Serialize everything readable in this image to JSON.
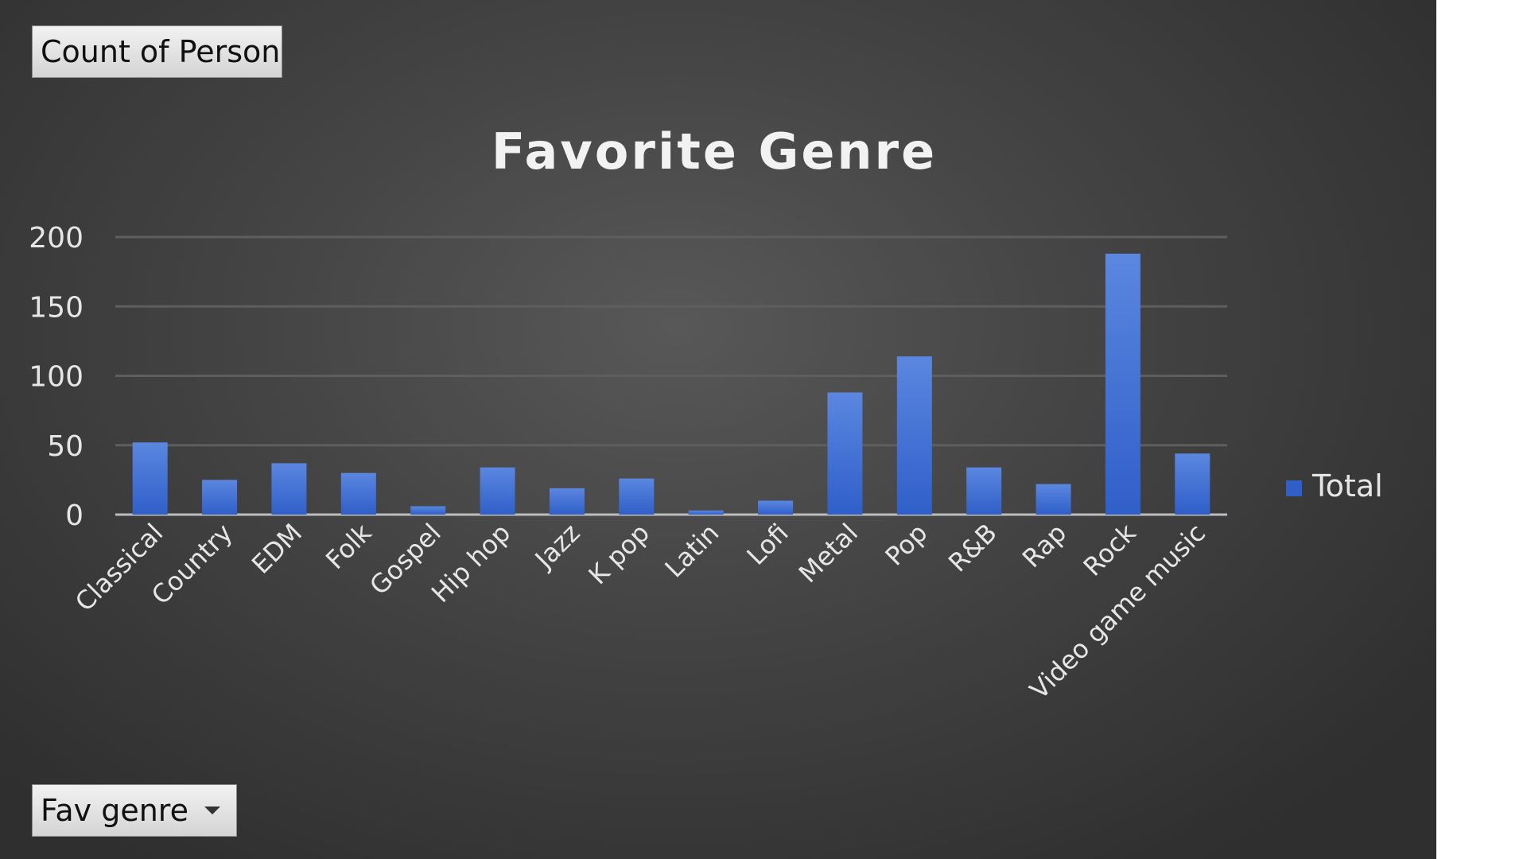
{
  "pivot": {
    "value_field": "Count of Person",
    "axis_field": "Fav genre"
  },
  "colors": {
    "bar_top": "#5b87e0",
    "bar_bottom": "#2f5fc9",
    "grid": "#5e5e5e",
    "text": "#e6e6e6",
    "title": "#f2f2f2"
  },
  "chart_data": {
    "type": "bar",
    "title": "Favorite Genre",
    "xlabel": "",
    "ylabel": "",
    "ylim": [
      0,
      200
    ],
    "yticks": [
      0,
      50,
      100,
      150,
      200
    ],
    "grid": true,
    "legend_position": "right",
    "categories": [
      "Classical",
      "Country",
      "EDM",
      "Folk",
      "Gospel",
      "Hip hop",
      "Jazz",
      "K pop",
      "Latin",
      "Lofi",
      "Metal",
      "Pop",
      "R&B",
      "Rap",
      "Rock",
      "Video game music"
    ],
    "series": [
      {
        "name": "Total",
        "values": [
          52,
          25,
          37,
          30,
          6,
          34,
          19,
          26,
          3,
          10,
          88,
          114,
          34,
          22,
          188,
          44
        ]
      }
    ]
  }
}
